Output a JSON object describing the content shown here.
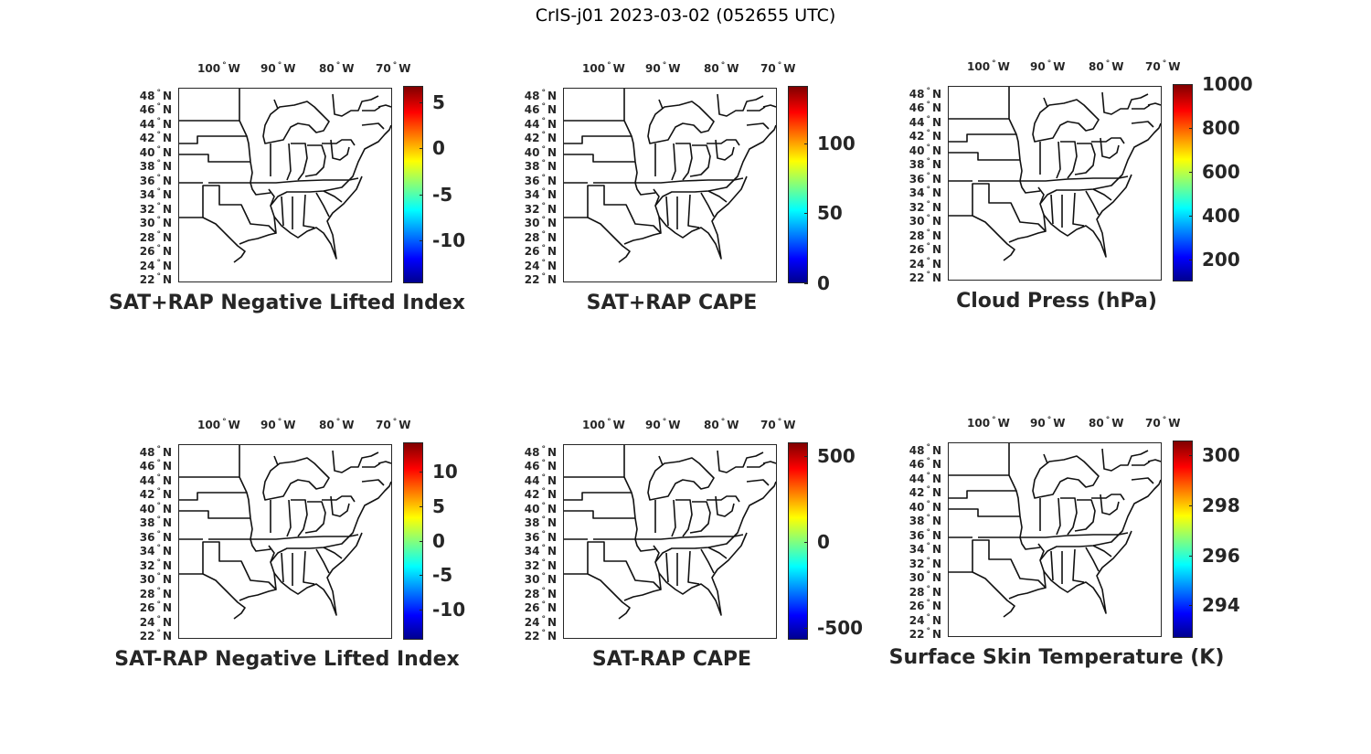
{
  "figure_title": "CrIS-j01 2023-03-02 (052655 UTC)",
  "lon_labels": [
    "100",
    "90",
    "80",
    "70"
  ],
  "lon_suffix": "W",
  "lat_labels": [
    "48",
    "46",
    "44",
    "42",
    "40",
    "38",
    "36",
    "34",
    "32",
    "30",
    "28",
    "26",
    "24",
    "22"
  ],
  "lat_suffix": "N",
  "degree_symbol": "°",
  "colormap": "jet",
  "panels": [
    {
      "title": "SAT+RAP Negative Lifted Index",
      "cbar_ticks": [
        "5",
        "0",
        "-5",
        "-10"
      ],
      "cbar_range": [
        -14.7,
        6.8
      ],
      "tick_values": [
        5,
        0,
        -5,
        -10
      ]
    },
    {
      "title": "SAT+RAP CAPE",
      "cbar_ticks": [
        "100",
        "50",
        "0"
      ],
      "cbar_range": [
        0,
        141
      ],
      "tick_values": [
        100,
        50,
        0
      ]
    },
    {
      "title": "Cloud Press (hPa)",
      "cbar_ticks": [
        "1000",
        "800",
        "600",
        "400",
        "200"
      ],
      "cbar_range": [
        100,
        1000
      ],
      "tick_values": [
        1000,
        800,
        600,
        400,
        200
      ]
    },
    {
      "title": "SAT-RAP Negative Lifted Index",
      "cbar_ticks": [
        "10",
        "5",
        "0",
        "-5",
        "-10"
      ],
      "cbar_range": [
        -14.4,
        14.3
      ],
      "tick_values": [
        10,
        5,
        0,
        -5,
        -10
      ]
    },
    {
      "title": "SAT-RAP CAPE",
      "cbar_ticks": [
        "500",
        "0",
        "-500"
      ],
      "cbar_range": [
        -570,
        580
      ],
      "tick_values": [
        500,
        0,
        -500
      ]
    },
    {
      "title": "Surface Skin Temperature (K)",
      "cbar_ticks": [
        "300",
        "298",
        "296",
        "294"
      ],
      "cbar_range": [
        292.7,
        300.6
      ],
      "tick_values": [
        300,
        298,
        296,
        294
      ]
    }
  ]
}
